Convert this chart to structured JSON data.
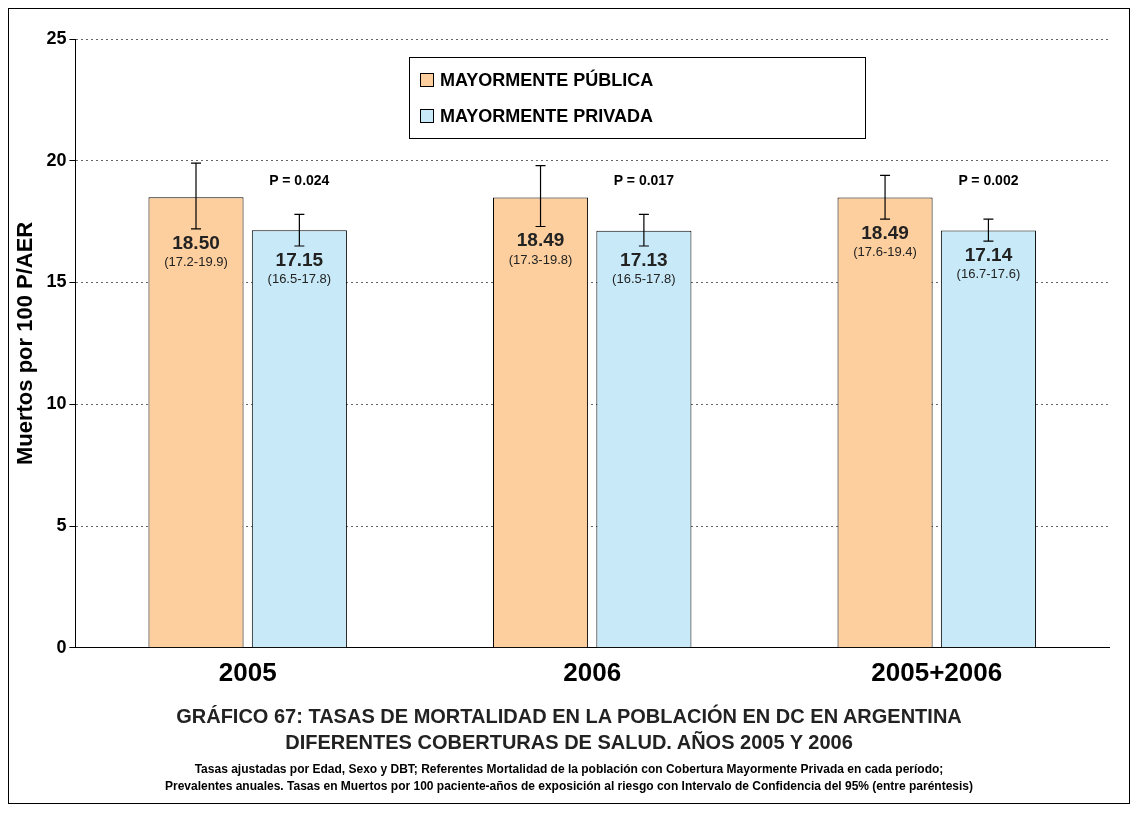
{
  "chart_data": {
    "type": "bar",
    "title": "GRÁFICO 67:  TASAS DE MORTALIDAD  EN  LA POBLACIÓN EN DC EN ARGENTINA\nDIFERENTES  COBERTURAS DE SALUD. AÑOS 2005 Y 2006",
    "ylabel": "Muertos por 100 P/AER",
    "categories": [
      "2005",
      "2006",
      "2005+2006"
    ],
    "series": [
      {
        "name": "MAYORMENTE PÚBLICA",
        "color": "#fdcf9e",
        "values": [
          18.5,
          18.49,
          18.49
        ],
        "errors": [
          [
            17.2,
            19.9
          ],
          [
            17.3,
            19.8
          ],
          [
            17.6,
            19.4
          ]
        ],
        "value_labels": [
          "18.50\n(17.2-19.9)",
          "18.49\n(17.3-19.8)",
          "18.49\n(17.6-19.4)"
        ]
      },
      {
        "name": "MAYORMENTE PRIVADA",
        "color": "#c8eaf8",
        "values": [
          17.15,
          17.13,
          17.14
        ],
        "errors": [
          [
            16.5,
            17.8
          ],
          [
            16.5,
            17.8
          ],
          [
            16.7,
            17.6
          ]
        ],
        "value_labels": [
          "17.15\n(16.5-17.8)",
          "17.13\n(16.5-17.8)",
          "17.14\n(16.7-17.6)"
        ]
      }
    ],
    "ylim": [
      0,
      25
    ],
    "yticks": [
      0,
      5,
      10,
      15,
      20,
      25
    ],
    "grid": "y",
    "legend": "top",
    "annotations": [
      "P = 0.024",
      "P = 0.017",
      "P = 0.002",
      "Tasas ajustadas por Edad, Sexo y DBT; Referentes Mortalidad de la población con Cobertura Mayormente Privada en cada período;",
      "Prevalentes anuales. Tasas en Muertos por 100 paciente-años de exposición al riesgo con Intervalo de Confidencia del 95% (entre paréntesis)"
    ]
  }
}
